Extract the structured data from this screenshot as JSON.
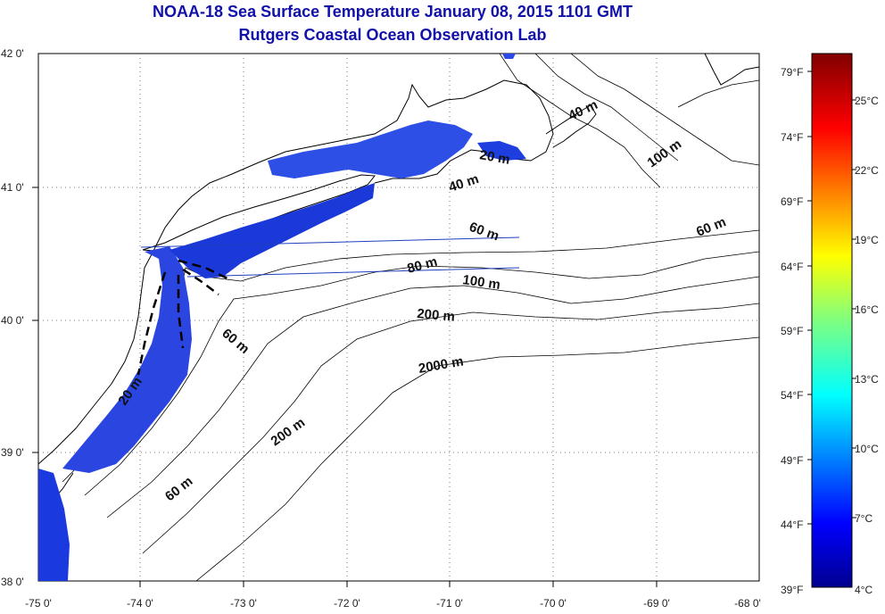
{
  "header": {
    "title": "NOAA-18 Sea Surface Temperature January 08, 2015 1101 GMT",
    "subtitle": "Rutgers Coastal Ocean Observation Lab"
  },
  "map": {
    "lat_labels": [
      "42 0'",
      "41 0'",
      "40 0'",
      "39 0'",
      "38 0'"
    ],
    "lon_labels": [
      "-75 0'",
      "-74 0'",
      "-73 0'",
      "-72 0'",
      "-71 0'",
      "-70 0'",
      "-69 0'",
      "-68 0'"
    ],
    "lat_range": [
      38,
      42
    ],
    "lon_range": [
      -75,
      -68
    ],
    "depth_labels": [
      "40 m",
      "100 m",
      "20 m",
      "40 m",
      "60 m",
      "60 m",
      "80 m",
      "100 m",
      "200 m",
      "60 m",
      "2000 m",
      "20 m",
      "200 m",
      "60 m"
    ]
  },
  "colorbar": {
    "fahrenheit_labels": [
      "79°F",
      "74°F",
      "69°F",
      "64°F",
      "59°F",
      "54°F",
      "49°F",
      "44°F",
      "39°F"
    ],
    "celsius_labels": [
      "25°C",
      "22°C",
      "19°C",
      "16°C",
      "13°C",
      "10°C",
      "7°C",
      "4°C"
    ],
    "range_f": [
      39,
      81
    ],
    "range_c": [
      4,
      27
    ]
  }
}
